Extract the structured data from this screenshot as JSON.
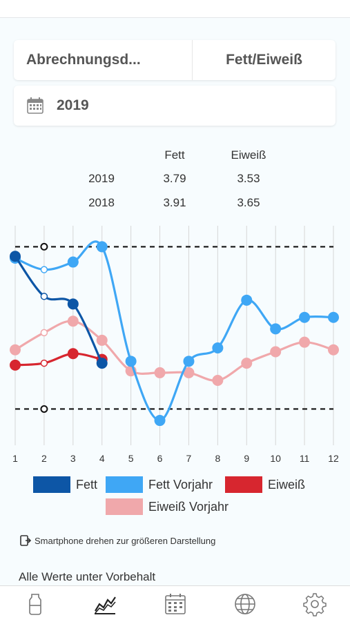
{
  "selector": {
    "left_label": "Abrechnungsd...",
    "right_label": "Fett/Eiweiß"
  },
  "year_picker": {
    "value": "2019",
    "icon": "calendar-icon"
  },
  "summary": {
    "headers": [
      "",
      "Fett",
      "Eiweiß"
    ],
    "rows": [
      {
        "year": "2019",
        "fett": "3.79",
        "eiweiss": "3.53"
      },
      {
        "year": "2018",
        "fett": "3.91",
        "eiweiss": "3.65"
      }
    ]
  },
  "chart_data": {
    "type": "line",
    "x": [
      1,
      2,
      3,
      4,
      5,
      6,
      7,
      8,
      9,
      10,
      11,
      12
    ],
    "ylim": [
      3.19,
      4.34
    ],
    "reference_lines": [
      4.23,
      3.38
    ],
    "grid": true,
    "series": [
      {
        "name": "Fett",
        "color": "#0d56a6",
        "x": [
          1,
          2,
          3,
          4
        ],
        "values": [
          4.18,
          3.97,
          3.93,
          3.62
        ]
      },
      {
        "name": "Fett Vorjahr",
        "color": "#3fa7f5",
        "x": [
          1,
          2,
          3,
          4,
          5,
          6,
          7,
          8,
          9,
          10,
          11,
          12
        ],
        "values": [
          4.17,
          4.11,
          4.15,
          4.23,
          3.63,
          3.32,
          3.63,
          3.7,
          3.95,
          3.8,
          3.86,
          3.86
        ]
      },
      {
        "name": "Eiweiß",
        "color": "#d7262f",
        "x": [
          1,
          2,
          3,
          4
        ],
        "values": [
          3.61,
          3.62,
          3.67,
          3.64
        ]
      },
      {
        "name": "Eiweiß Vorjahr",
        "color": "#f0a8ab",
        "x": [
          1,
          2,
          3,
          4,
          5,
          6,
          7,
          8,
          9,
          10,
          11,
          12
        ],
        "values": [
          3.69,
          3.78,
          3.84,
          3.74,
          3.58,
          3.57,
          3.57,
          3.53,
          3.62,
          3.68,
          3.73,
          3.69
        ]
      }
    ],
    "open_markers": [
      {
        "x": 2,
        "y": 4.11,
        "series": "Fett Vorjahr"
      },
      {
        "x": 2,
        "y": 3.97,
        "series": "Fett"
      },
      {
        "x": 2,
        "y": 3.78,
        "series": "Eiweiß Vorjahr"
      },
      {
        "x": 2,
        "y": 3.62,
        "series": "Eiweiß"
      }
    ],
    "ref_markers": [
      {
        "x": 2,
        "y": 4.23
      },
      {
        "x": 2,
        "y": 3.38
      }
    ],
    "xticks": [
      "1",
      "2",
      "3",
      "4",
      "5",
      "6",
      "7",
      "8",
      "9",
      "10",
      "11",
      "12"
    ]
  },
  "legend": [
    {
      "label": "Fett",
      "color": "#0d56a6"
    },
    {
      "label": "Fett Vorjahr",
      "color": "#3fa7f5"
    },
    {
      "label": "Eiweiß",
      "color": "#d7262f"
    },
    {
      "label": "Eiweiß Vorjahr",
      "color": "#f0a8ab"
    }
  ],
  "hint": "Smartphone drehen zur größeren Darstellung",
  "note": "Alle Werte unter Vorbehalt",
  "tabs": [
    {
      "icon": "milk-can-icon"
    },
    {
      "icon": "chart-icon",
      "active": true
    },
    {
      "icon": "calendar-icon"
    },
    {
      "icon": "globe-icon"
    },
    {
      "icon": "settings-gear-icon"
    }
  ]
}
